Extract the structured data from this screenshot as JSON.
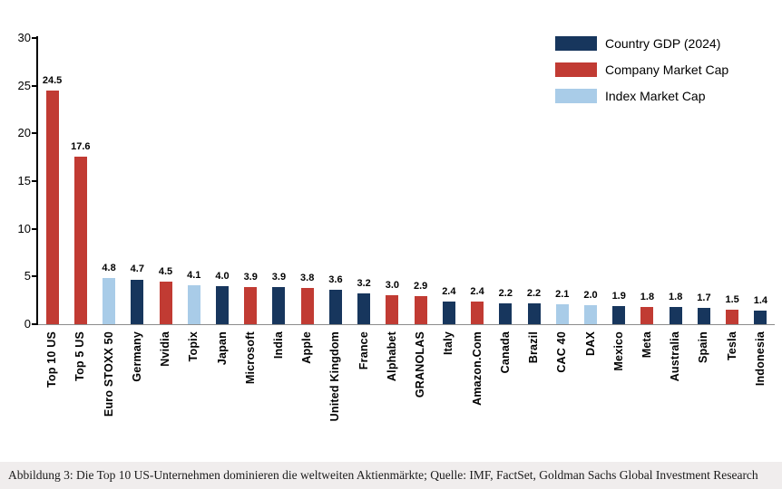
{
  "caption": {
    "text": "Abbildung 3: Die Top 10 US-Unternehmen dominieren die weltweiten Aktienmärkte; Quelle: IMF, FactSet, Goldman Sachs Global Investment Research"
  },
  "style": {
    "caption_background": "#F0EDED",
    "axis_color": "#000000",
    "baseline_color": "#8C8C8C"
  },
  "chart_data": {
    "type": "bar",
    "title": "",
    "xlabel": "",
    "ylabel": "",
    "ylim": [
      0,
      30
    ],
    "yticks": [
      0,
      5,
      10,
      15,
      20,
      25,
      30
    ],
    "grid": false,
    "legend_position": "top-right",
    "value_labels": "one-decimal",
    "series": [
      {
        "name": "Country GDP (2024)",
        "color": "#17365D"
      },
      {
        "name": "Company Market Cap",
        "color": "#C13B33"
      },
      {
        "name": "Index Market Cap",
        "color": "#A9CCE8"
      }
    ],
    "points": [
      {
        "category": "Top 10 US",
        "value": 24.5,
        "series": "Company Market Cap"
      },
      {
        "category": "Top 5 US",
        "value": 17.6,
        "series": "Company Market Cap"
      },
      {
        "category": "Euro STOXX 50",
        "value": 4.8,
        "series": "Index Market Cap"
      },
      {
        "category": "Germany",
        "value": 4.7,
        "series": "Country GDP (2024)"
      },
      {
        "category": "Nvidia",
        "value": 4.5,
        "series": "Company Market Cap"
      },
      {
        "category": "Topix",
        "value": 4.1,
        "series": "Index Market Cap"
      },
      {
        "category": "Japan",
        "value": 4.0,
        "series": "Country GDP (2024)"
      },
      {
        "category": "Microsoft",
        "value": 3.9,
        "series": "Company Market Cap"
      },
      {
        "category": "India",
        "value": 3.9,
        "series": "Country GDP (2024)"
      },
      {
        "category": "Apple",
        "value": 3.8,
        "series": "Company Market Cap"
      },
      {
        "category": "United Kingdom",
        "value": 3.6,
        "series": "Country GDP (2024)"
      },
      {
        "category": "France",
        "value": 3.2,
        "series": "Country GDP (2024)"
      },
      {
        "category": "Alphabet",
        "value": 3.0,
        "series": "Company Market Cap"
      },
      {
        "category": "GRANOLAS",
        "value": 2.9,
        "series": "Company Market Cap"
      },
      {
        "category": "Italy",
        "value": 2.4,
        "series": "Country GDP (2024)"
      },
      {
        "category": "Amazon.Com",
        "value": 2.4,
        "series": "Company Market Cap"
      },
      {
        "category": "Canada",
        "value": 2.2,
        "series": "Country GDP (2024)"
      },
      {
        "category": "Brazil",
        "value": 2.2,
        "series": "Country GDP (2024)"
      },
      {
        "category": "CAC 40",
        "value": 2.1,
        "series": "Index Market Cap"
      },
      {
        "category": "DAX",
        "value": 2.0,
        "series": "Index Market Cap"
      },
      {
        "category": "Mexico",
        "value": 1.9,
        "series": "Country GDP (2024)"
      },
      {
        "category": "Meta",
        "value": 1.8,
        "series": "Company Market Cap"
      },
      {
        "category": "Australia",
        "value": 1.8,
        "series": "Country GDP (2024)"
      },
      {
        "category": "Spain",
        "value": 1.7,
        "series": "Country GDP (2024)"
      },
      {
        "category": "Tesla",
        "value": 1.5,
        "series": "Company Market Cap"
      },
      {
        "category": "Indonesia",
        "value": 1.4,
        "series": "Country GDP (2024)"
      }
    ]
  }
}
